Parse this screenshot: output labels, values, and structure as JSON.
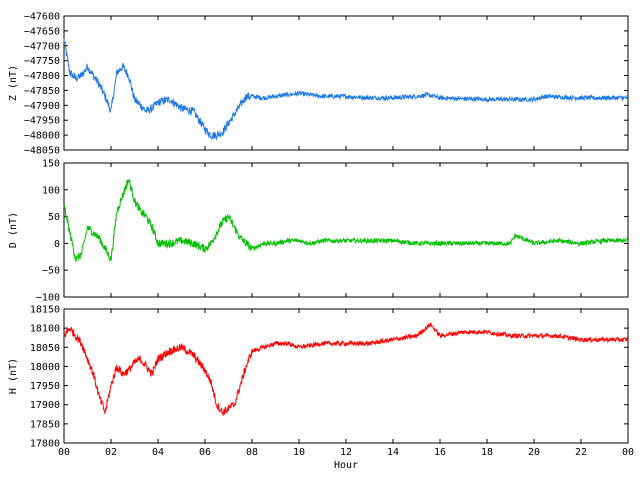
{
  "chart_data": [
    {
      "type": "line",
      "ylabel": "Z (nT)",
      "color": "#1e78e6",
      "ylim": [
        -48050,
        -47600
      ],
      "yticks": [
        -47600,
        -47650,
        -47700,
        -47750,
        -47800,
        -47850,
        -47900,
        -47950,
        -48000,
        -48050
      ],
      "xlim": [
        0,
        24
      ],
      "x": [
        0,
        0.25,
        0.5,
        0.75,
        1,
        1.25,
        1.5,
        1.75,
        2,
        2.25,
        2.5,
        2.75,
        3,
        3.25,
        3.5,
        3.75,
        4,
        4.5,
        5,
        5.5,
        6,
        6.25,
        6.5,
        6.75,
        7,
        7.25,
        7.5,
        7.75,
        8,
        8.5,
        9,
        9.5,
        10,
        10.5,
        11,
        12,
        13,
        14,
        15,
        15.5,
        16,
        17,
        18,
        19,
        20,
        20.5,
        21,
        22,
        23,
        24
      ],
      "values": [
        -47680,
        -47790,
        -47810,
        -47800,
        -47770,
        -47800,
        -47830,
        -47870,
        -47920,
        -47790,
        -47770,
        -47800,
        -47880,
        -47900,
        -47920,
        -47910,
        -47890,
        -47880,
        -47910,
        -47920,
        -47980,
        -48000,
        -48000,
        -47990,
        -47960,
        -47930,
        -47900,
        -47870,
        -47870,
        -47875,
        -47870,
        -47865,
        -47860,
        -47865,
        -47870,
        -47870,
        -47875,
        -47875,
        -47870,
        -47865,
        -47875,
        -47878,
        -47880,
        -47880,
        -47880,
        -47870,
        -47872,
        -47875,
        -47875,
        -47875
      ]
    },
    {
      "type": "line",
      "ylabel": "D (nT)",
      "color": "#00c000",
      "ylim": [
        -100,
        150
      ],
      "yticks": [
        150,
        100,
        50,
        0,
        -50,
        -100
      ],
      "xlim": [
        0,
        24
      ],
      "x": [
        0,
        0.25,
        0.5,
        0.75,
        1,
        1.25,
        1.5,
        1.75,
        2,
        2.25,
        2.5,
        2.75,
        3,
        3.25,
        3.5,
        3.75,
        4,
        4.5,
        5,
        5.5,
        6,
        6.25,
        6.5,
        6.75,
        7,
        7.25,
        7.5,
        7.75,
        8,
        8.5,
        9,
        9.5,
        10,
        10.5,
        11,
        12,
        13,
        14,
        15,
        16,
        17,
        18,
        19,
        19.2,
        20,
        21,
        22,
        23,
        24
      ],
      "values": [
        70,
        20,
        -30,
        -20,
        30,
        20,
        10,
        -10,
        -30,
        60,
        90,
        120,
        80,
        60,
        50,
        30,
        0,
        0,
        5,
        0,
        -10,
        0,
        20,
        40,
        50,
        30,
        10,
        0,
        -10,
        0,
        0,
        5,
        5,
        0,
        5,
        5,
        5,
        5,
        0,
        0,
        0,
        0,
        0,
        15,
        0,
        5,
        0,
        5,
        5
      ]
    },
    {
      "type": "line",
      "ylabel": "H (nT)",
      "color": "#ff0000",
      "ylim": [
        17800,
        18150
      ],
      "yticks": [
        18150,
        18100,
        18050,
        18000,
        17950,
        17900,
        17850,
        17800
      ],
      "xlim": [
        0,
        24
      ],
      "xticks": [
        "00",
        "02",
        "04",
        "06",
        "08",
        "10",
        "12",
        "14",
        "16",
        "18",
        "20",
        "22",
        "00"
      ],
      "xlabel": "Hour",
      "x": [
        0,
        0.25,
        0.5,
        0.75,
        1,
        1.25,
        1.5,
        1.75,
        2,
        2.25,
        2.5,
        2.75,
        3,
        3.25,
        3.5,
        3.75,
        4,
        4.5,
        5,
        5.5,
        6,
        6.25,
        6.5,
        6.75,
        7,
        7.25,
        7.5,
        7.75,
        8,
        8.5,
        9,
        9.5,
        10,
        11,
        12,
        13,
        14,
        15,
        15.6,
        16,
        17,
        18,
        19,
        20,
        21,
        22,
        23,
        24
      ],
      "values": [
        18080,
        18100,
        18080,
        18060,
        18020,
        17980,
        17920,
        17880,
        17950,
        18000,
        17980,
        17990,
        18010,
        18020,
        18000,
        17980,
        18020,
        18040,
        18050,
        18030,
        17990,
        17960,
        17900,
        17880,
        17890,
        17900,
        17950,
        18000,
        18040,
        18050,
        18060,
        18060,
        18050,
        18060,
        18060,
        18060,
        18070,
        18080,
        18110,
        18080,
        18090,
        18090,
        18080,
        18080,
        18080,
        18070,
        18070,
        18070
      ]
    }
  ]
}
